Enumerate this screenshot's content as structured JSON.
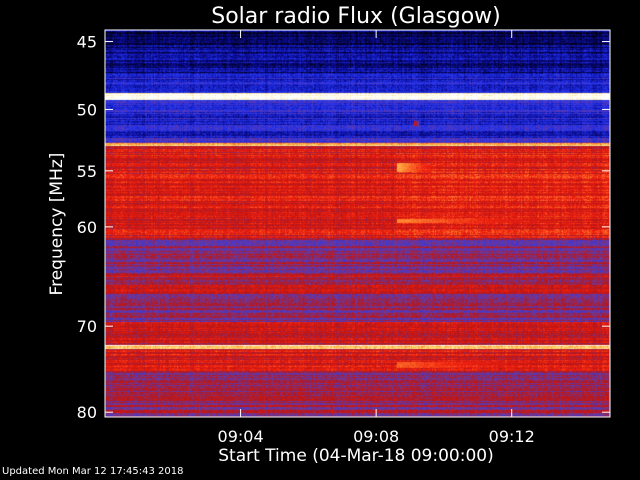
{
  "chart_data": {
    "type": "heatmap",
    "title": "Solar radio Flux (Glasgow)",
    "xlabel": "Start Time (04-Mar-18 09:00:00)",
    "ylabel": "Frequency [MHz]",
    "x_unit": "minutes after 09:00",
    "xlim": [
      0.0,
      14.9
    ],
    "ylim": [
      44.2,
      80.6
    ],
    "y_reversed": true,
    "y_scale": "log",
    "x_ticks": [
      {
        "value": 4,
        "label": "09:04"
      },
      {
        "value": 8,
        "label": "09:08"
      },
      {
        "value": 12,
        "label": "09:12"
      }
    ],
    "y_ticks": [
      {
        "value": 45,
        "label": "45"
      },
      {
        "value": 50,
        "label": "50"
      },
      {
        "value": 55,
        "label": "55"
      },
      {
        "value": 60,
        "label": "60"
      },
      {
        "value": 70,
        "label": "70"
      },
      {
        "value": 80,
        "label": "80"
      }
    ],
    "colormap": [
      "#000010",
      "#0a0a90",
      "#2233ee",
      "#6a3aa0",
      "#b81414",
      "#f02010",
      "#ff8a30",
      "#ffe070",
      "#ffffff"
    ],
    "bands": [
      {
        "from": 44.2,
        "to": 45.2,
        "level": 0.06
      },
      {
        "from": 45.2,
        "to": 47.2,
        "level": 0.12
      },
      {
        "from": 47.2,
        "to": 48.7,
        "level": 0.22
      },
      {
        "from": 48.7,
        "to": 49.2,
        "level": 0.98
      },
      {
        "from": 49.2,
        "to": 50.4,
        "level": 0.25
      },
      {
        "from": 50.4,
        "to": 52.2,
        "level": 0.22
      },
      {
        "from": 52.2,
        "to": 52.6,
        "level": 0.3
      },
      {
        "from": 52.6,
        "to": 52.9,
        "level": 0.82
      },
      {
        "from": 52.9,
        "to": 53.4,
        "level": 0.55
      },
      {
        "from": 53.4,
        "to": 61.0,
        "level": 0.56
      },
      {
        "from": 61.0,
        "to": 64.5,
        "level": 0.42
      },
      {
        "from": 64.5,
        "to": 66.5,
        "level": 0.5
      },
      {
        "from": 66.5,
        "to": 69.5,
        "level": 0.4
      },
      {
        "from": 69.5,
        "to": 72.0,
        "level": 0.52
      },
      {
        "from": 72.0,
        "to": 72.5,
        "level": 0.9
      },
      {
        "from": 72.5,
        "to": 75.0,
        "level": 0.56
      },
      {
        "from": 75.0,
        "to": 80.6,
        "level": 0.44
      }
    ],
    "events": [
      {
        "x0": 8.6,
        "x1": 10.1,
        "y0": 54.3,
        "y1": 55.1,
        "level": 0.8
      },
      {
        "x0": 8.6,
        "x1": 14.9,
        "y0": 59.2,
        "y1": 59.6,
        "level": 0.75
      },
      {
        "x0": 8.6,
        "x1": 14.9,
        "y0": 73.9,
        "y1": 74.6,
        "level": 0.7
      },
      {
        "x0": 9.1,
        "x1": 9.25,
        "y0": 50.9,
        "y1": 51.3,
        "level": 0.6
      }
    ],
    "event_onset_x": 8.6
  },
  "footer": {
    "updated": "Updated Mon Mar 12 17:45:43 2018"
  }
}
